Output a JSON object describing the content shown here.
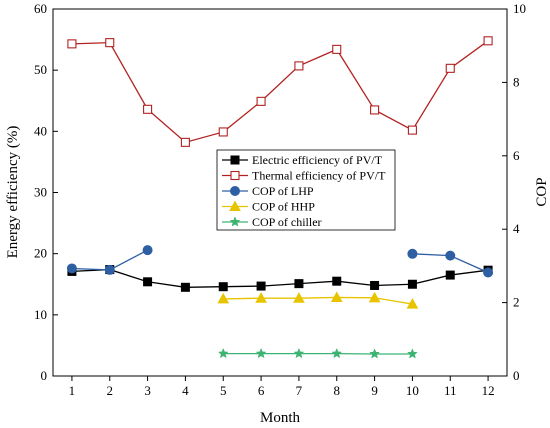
{
  "chart_data": {
    "type": "line",
    "xlabel": "Month",
    "ylabel_left": "Energy efficiency (%)",
    "ylabel_right": "COP",
    "x_ticks": [
      1,
      2,
      3,
      4,
      5,
      6,
      7,
      8,
      9,
      10,
      11,
      12
    ],
    "xlim": [
      0.5,
      12.5
    ],
    "ylim_left": [
      0,
      60
    ],
    "ylim_right": [
      0,
      10
    ],
    "yticks_left": [
      0,
      10,
      20,
      30,
      40,
      50,
      60
    ],
    "yticks_right": [
      0,
      2,
      4,
      6,
      8,
      10
    ],
    "grid": false,
    "legend_position": "center",
    "series": [
      {
        "name": "Electric efficiency of PV/T",
        "axis": "left",
        "color": "#000000",
        "marker": "filled-square",
        "x": [
          1,
          2,
          3,
          4,
          5,
          6,
          7,
          8,
          9,
          10,
          11,
          12
        ],
        "y": [
          17.1,
          17.4,
          15.4,
          14.5,
          14.6,
          14.7,
          15.1,
          15.5,
          14.8,
          15.0,
          16.5,
          17.3
        ]
      },
      {
        "name": "Thermal efficiency of PV/T",
        "axis": "left",
        "color": "#b22222",
        "marker": "open-square",
        "x": [
          1,
          2,
          3,
          4,
          5,
          6,
          7,
          8,
          9,
          10,
          11,
          12
        ],
        "y": [
          54.3,
          54.5,
          43.6,
          38.2,
          39.9,
          44.9,
          50.7,
          53.4,
          43.5,
          40.2,
          50.3,
          54.8
        ]
      },
      {
        "name": "COP of LHP",
        "axis": "right",
        "color": "#2e5fa3",
        "marker": "circle",
        "segments": [
          {
            "x": [
              1,
              2,
              3
            ],
            "y": [
              2.93,
              2.89,
              3.43
            ]
          },
          {
            "x": [
              10,
              11,
              12
            ],
            "y": [
              3.33,
              3.28,
              2.82
            ]
          }
        ]
      },
      {
        "name": "COP of HHP",
        "axis": "right",
        "color": "#e8c400",
        "marker": "triangle",
        "x": [
          5,
          6,
          7,
          8,
          9,
          10
        ],
        "y": [
          2.1,
          2.12,
          2.12,
          2.14,
          2.13,
          1.96
        ]
      },
      {
        "name": "COP of chiller",
        "axis": "right",
        "color": "#3cb371",
        "marker": "star",
        "x": [
          5,
          6,
          7,
          8,
          9,
          10
        ],
        "y": [
          0.61,
          0.61,
          0.61,
          0.61,
          0.6,
          0.6
        ]
      }
    ]
  }
}
